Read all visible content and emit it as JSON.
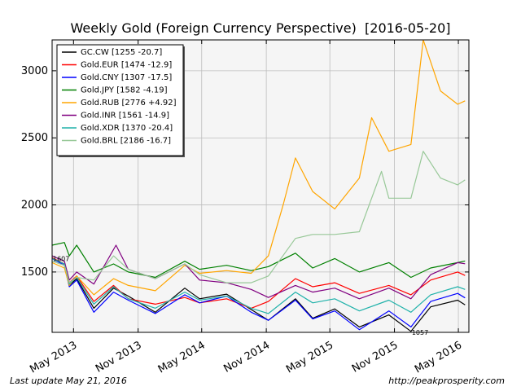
{
  "chart_data": {
    "type": "line",
    "title": "Weekly Gold (Foreign Currency Perspective)  [2016-05-20]",
    "xlabel": "",
    "ylabel": "",
    "ylim": [
      1050,
      3230
    ],
    "y_ticks": [
      1500,
      2000,
      2500,
      3000
    ],
    "x_range": [
      "2013-03-01",
      "2016-05-31"
    ],
    "x_ticks": [
      {
        "date": "2013-05-01",
        "label": "May 2013"
      },
      {
        "date": "2013-11-01",
        "label": "Nov 2013"
      },
      {
        "date": "2014-05-01",
        "label": "May 2014"
      },
      {
        "date": "2014-11-01",
        "label": "Nov 2014"
      },
      {
        "date": "2015-05-01",
        "label": "May 2015"
      },
      {
        "date": "2015-11-01",
        "label": "Nov 2015"
      },
      {
        "date": "2016-05-01",
        "label": "May 2016"
      }
    ],
    "grid": true,
    "legend_position": "top-left",
    "annotations": [
      {
        "text": "1607",
        "x": "2013-03-01",
        "y": 1607
      },
      {
        "text": "1057",
        "x": "2015-12-18",
        "y": 1057
      }
    ],
    "series": [
      {
        "name": "GC.CW [1255 -20.7]",
        "color": "#000000",
        "points": [
          [
            "2013-03-01",
            1605
          ],
          [
            "2013-04-05",
            1560
          ],
          [
            "2013-04-19",
            1400
          ],
          [
            "2013-05-10",
            1450
          ],
          [
            "2013-06-28",
            1230
          ],
          [
            "2013-08-23",
            1380
          ],
          [
            "2013-10-04",
            1320
          ],
          [
            "2013-12-20",
            1200
          ],
          [
            "2014-03-14",
            1380
          ],
          [
            "2014-04-25",
            1300
          ],
          [
            "2014-07-11",
            1335
          ],
          [
            "2014-09-19",
            1220
          ],
          [
            "2014-11-07",
            1140
          ],
          [
            "2015-01-23",
            1300
          ],
          [
            "2015-03-13",
            1155
          ],
          [
            "2015-05-15",
            1225
          ],
          [
            "2015-07-24",
            1090
          ],
          [
            "2015-10-16",
            1180
          ],
          [
            "2015-12-18",
            1057
          ],
          [
            "2016-02-12",
            1240
          ],
          [
            "2016-04-29",
            1290
          ],
          [
            "2016-05-20",
            1255
          ]
        ]
      },
      {
        "name": "Gold.EUR [1474 -12.9]",
        "color": "#ff0000",
        "points": [
          [
            "2013-03-01",
            1605
          ],
          [
            "2013-04-05",
            1560
          ],
          [
            "2013-04-19",
            1420
          ],
          [
            "2013-05-10",
            1470
          ],
          [
            "2013-06-28",
            1280
          ],
          [
            "2013-08-23",
            1400
          ],
          [
            "2013-10-04",
            1300
          ],
          [
            "2013-12-20",
            1260
          ],
          [
            "2014-03-14",
            1310
          ],
          [
            "2014-04-25",
            1270
          ],
          [
            "2014-07-11",
            1300
          ],
          [
            "2014-09-19",
            1230
          ],
          [
            "2014-11-07",
            1280
          ],
          [
            "2015-01-23",
            1450
          ],
          [
            "2015-03-13",
            1390
          ],
          [
            "2015-05-15",
            1420
          ],
          [
            "2015-07-24",
            1340
          ],
          [
            "2015-10-16",
            1400
          ],
          [
            "2015-12-18",
            1330
          ],
          [
            "2016-02-12",
            1440
          ],
          [
            "2016-04-29",
            1500
          ],
          [
            "2016-05-20",
            1474
          ]
        ]
      },
      {
        "name": "Gold.CNY [1307 -17.5]",
        "color": "#0000ff",
        "points": [
          [
            "2013-03-01",
            1600
          ],
          [
            "2013-04-05",
            1550
          ],
          [
            "2013-04-19",
            1390
          ],
          [
            "2013-05-10",
            1440
          ],
          [
            "2013-06-28",
            1200
          ],
          [
            "2013-08-23",
            1350
          ],
          [
            "2013-10-04",
            1290
          ],
          [
            "2013-12-20",
            1190
          ],
          [
            "2014-03-14",
            1330
          ],
          [
            "2014-04-25",
            1270
          ],
          [
            "2014-07-11",
            1320
          ],
          [
            "2014-09-19",
            1200
          ],
          [
            "2014-11-07",
            1140
          ],
          [
            "2015-01-23",
            1290
          ],
          [
            "2015-03-13",
            1150
          ],
          [
            "2015-05-15",
            1210
          ],
          [
            "2015-07-24",
            1070
          ],
          [
            "2015-10-16",
            1210
          ],
          [
            "2015-12-18",
            1090
          ],
          [
            "2016-02-12",
            1280
          ],
          [
            "2016-04-29",
            1340
          ],
          [
            "2016-05-20",
            1307
          ]
        ]
      },
      {
        "name": "Gold.JPY [1582 -4.19]",
        "color": "#008000",
        "points": [
          [
            "2013-03-01",
            1700
          ],
          [
            "2013-04-05",
            1720
          ],
          [
            "2013-04-19",
            1620
          ],
          [
            "2013-05-10",
            1700
          ],
          [
            "2013-06-28",
            1500
          ],
          [
            "2013-08-23",
            1560
          ],
          [
            "2013-10-04",
            1500
          ],
          [
            "2013-12-20",
            1460
          ],
          [
            "2014-03-14",
            1580
          ],
          [
            "2014-04-25",
            1520
          ],
          [
            "2014-07-11",
            1550
          ],
          [
            "2014-09-19",
            1510
          ],
          [
            "2014-11-07",
            1540
          ],
          [
            "2015-01-23",
            1640
          ],
          [
            "2015-03-13",
            1530
          ],
          [
            "2015-05-15",
            1600
          ],
          [
            "2015-07-24",
            1500
          ],
          [
            "2015-10-16",
            1570
          ],
          [
            "2015-12-18",
            1460
          ],
          [
            "2016-02-12",
            1530
          ],
          [
            "2016-04-29",
            1570
          ],
          [
            "2016-05-20",
            1582
          ]
        ]
      },
      {
        "name": "Gold.RUB [2776 +4.92]",
        "color": "#ffa500",
        "points": [
          [
            "2013-03-01",
            1570
          ],
          [
            "2013-04-05",
            1530
          ],
          [
            "2013-04-19",
            1400
          ],
          [
            "2013-05-10",
            1470
          ],
          [
            "2013-06-28",
            1330
          ],
          [
            "2013-08-23",
            1450
          ],
          [
            "2013-10-04",
            1400
          ],
          [
            "2013-12-20",
            1360
          ],
          [
            "2014-03-14",
            1550
          ],
          [
            "2014-04-25",
            1490
          ],
          [
            "2014-07-11",
            1510
          ],
          [
            "2014-09-19",
            1490
          ],
          [
            "2014-11-07",
            1620
          ],
          [
            "2014-12-19",
            2000
          ],
          [
            "2015-01-23",
            2350
          ],
          [
            "2015-03-13",
            2100
          ],
          [
            "2015-05-15",
            1970
          ],
          [
            "2015-07-24",
            2200
          ],
          [
            "2015-08-28",
            2650
          ],
          [
            "2015-10-16",
            2400
          ],
          [
            "2015-12-18",
            2450
          ],
          [
            "2016-01-22",
            3230
          ],
          [
            "2016-03-11",
            2850
          ],
          [
            "2016-04-29",
            2750
          ],
          [
            "2016-05-20",
            2776
          ]
        ]
      },
      {
        "name": "Gold.INR [1561 -14.9]",
        "color": "#800080",
        "points": [
          [
            "2013-03-01",
            1620
          ],
          [
            "2013-04-05",
            1580
          ],
          [
            "2013-04-19",
            1440
          ],
          [
            "2013-05-10",
            1500
          ],
          [
            "2013-06-28",
            1410
          ],
          [
            "2013-08-30",
            1700
          ],
          [
            "2013-10-04",
            1520
          ],
          [
            "2013-12-20",
            1450
          ],
          [
            "2014-03-14",
            1560
          ],
          [
            "2014-04-25",
            1440
          ],
          [
            "2014-07-11",
            1420
          ],
          [
            "2014-09-19",
            1370
          ],
          [
            "2014-11-07",
            1310
          ],
          [
            "2015-01-23",
            1400
          ],
          [
            "2015-03-13",
            1350
          ],
          [
            "2015-05-15",
            1380
          ],
          [
            "2015-07-24",
            1300
          ],
          [
            "2015-10-16",
            1380
          ],
          [
            "2015-12-18",
            1300
          ],
          [
            "2016-02-12",
            1480
          ],
          [
            "2016-04-29",
            1570
          ],
          [
            "2016-05-20",
            1561
          ]
        ]
      },
      {
        "name": "Gold.XDR [1370 -20.4]",
        "color": "#20b2aa",
        "points": [
          [
            "2013-03-01",
            1600
          ],
          [
            "2013-04-05",
            1560
          ],
          [
            "2013-04-19",
            1410
          ],
          [
            "2013-05-10",
            1460
          ],
          [
            "2013-06-28",
            1260
          ],
          [
            "2013-08-23",
            1390
          ],
          [
            "2013-10-04",
            1300
          ],
          [
            "2013-12-20",
            1230
          ],
          [
            "2014-03-14",
            1350
          ],
          [
            "2014-04-25",
            1290
          ],
          [
            "2014-07-11",
            1320
          ],
          [
            "2014-09-19",
            1230
          ],
          [
            "2014-11-07",
            1190
          ],
          [
            "2015-01-23",
            1350
          ],
          [
            "2015-03-13",
            1270
          ],
          [
            "2015-05-15",
            1300
          ],
          [
            "2015-07-24",
            1210
          ],
          [
            "2015-10-16",
            1290
          ],
          [
            "2015-12-18",
            1200
          ],
          [
            "2016-02-12",
            1330
          ],
          [
            "2016-04-29",
            1390
          ],
          [
            "2016-05-20",
            1370
          ]
        ]
      },
      {
        "name": "Gold.BRL [2186 -16.7]",
        "color": "#98c898",
        "points": [
          [
            "2013-03-01",
            1580
          ],
          [
            "2013-04-05",
            1550
          ],
          [
            "2013-04-19",
            1420
          ],
          [
            "2013-05-10",
            1460
          ],
          [
            "2013-06-28",
            1440
          ],
          [
            "2013-08-23",
            1620
          ],
          [
            "2013-10-04",
            1520
          ],
          [
            "2013-12-20",
            1450
          ],
          [
            "2014-03-14",
            1560
          ],
          [
            "2014-04-25",
            1480
          ],
          [
            "2014-07-11",
            1420
          ],
          [
            "2014-09-19",
            1420
          ],
          [
            "2014-11-07",
            1470
          ],
          [
            "2015-01-23",
            1750
          ],
          [
            "2015-03-13",
            1780
          ],
          [
            "2015-05-15",
            1780
          ],
          [
            "2015-07-24",
            1800
          ],
          [
            "2015-09-25",
            2250
          ],
          [
            "2015-10-16",
            2050
          ],
          [
            "2015-12-18",
            2050
          ],
          [
            "2016-01-22",
            2400
          ],
          [
            "2016-03-11",
            2200
          ],
          [
            "2016-04-29",
            2150
          ],
          [
            "2016-05-20",
            2186
          ]
        ]
      }
    ]
  },
  "footer": {
    "left": "Last update May 21, 2016",
    "right": "http://peakprosperity.com"
  }
}
